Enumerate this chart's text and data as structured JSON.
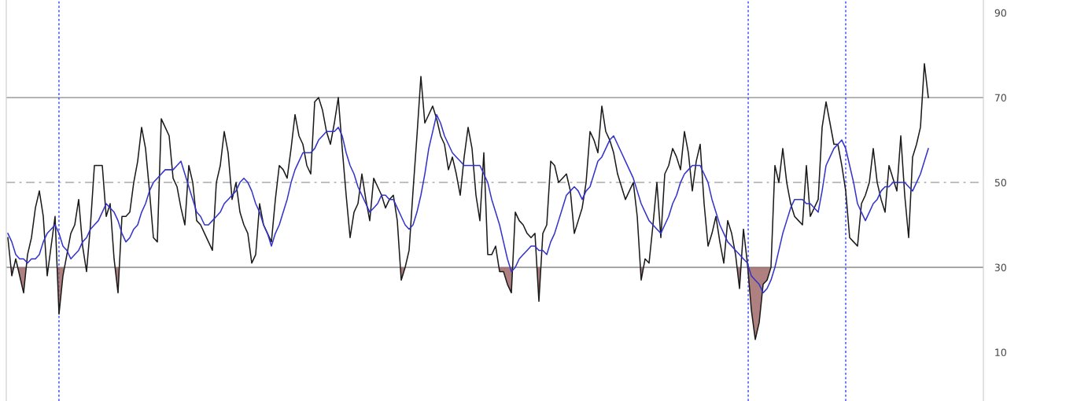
{
  "chart_data": {
    "type": "line",
    "categories": [
      null,
      null,
      null,
      null,
      null,
      null,
      null,
      null,
      null,
      null,
      null,
      null,
      null,
      null,
      null,
      null,
      null,
      null,
      null,
      null,
      null,
      null,
      null,
      null,
      null,
      null,
      null,
      null,
      null,
      null,
      null,
      null,
      null,
      null,
      null,
      null,
      null,
      null,
      null,
      null,
      null,
      null,
      null,
      null,
      null,
      null,
      null,
      null,
      null,
      null,
      null,
      null,
      null,
      null,
      null,
      null,
      null,
      null,
      null,
      null,
      null,
      null,
      null,
      null,
      null,
      null,
      null,
      null,
      null,
      null,
      null,
      null,
      null,
      null,
      null,
      null,
      null,
      null,
      null,
      null,
      null,
      null,
      null,
      null,
      null,
      null,
      null,
      null,
      null,
      null,
      null,
      null,
      null,
      null,
      null,
      null,
      null,
      null,
      null,
      null,
      null,
      null,
      null,
      null,
      null,
      null,
      null,
      null,
      null,
      null,
      null,
      null,
      null,
      null,
      null,
      null,
      null,
      null,
      null,
      null,
      null,
      null,
      null,
      null,
      null,
      null,
      null,
      null,
      null,
      null,
      null,
      null,
      null,
      null,
      null,
      null,
      null,
      null,
      null,
      null,
      null,
      null,
      null,
      null,
      null,
      null,
      null,
      null,
      null,
      null,
      null,
      null,
      null,
      null,
      null,
      null,
      null,
      null,
      null,
      null,
      null,
      null,
      null,
      null,
      null,
      null,
      null,
      null,
      null,
      null,
      null,
      null,
      null,
      null,
      null,
      null,
      null,
      null,
      null,
      null,
      null,
      null,
      null,
      null,
      null,
      null,
      null,
      null,
      null,
      null,
      null,
      null,
      null,
      null,
      null,
      null,
      null,
      null,
      null,
      null,
      null,
      null,
      null,
      null,
      null,
      null,
      null,
      null,
      null,
      null,
      null,
      null,
      null,
      null,
      null,
      null,
      null,
      null,
      null,
      null,
      null,
      null,
      null,
      null,
      null,
      null,
      null,
      null,
      null,
      null,
      null,
      null,
      null,
      null,
      null
    ],
    "series": [
      {
        "color": "#1a1a1a",
        "values": [
          37,
          28,
          32,
          28,
          24,
          33,
          37,
          44,
          48,
          42,
          28,
          35,
          42,
          19,
          28,
          33,
          38,
          40,
          46,
          35,
          29,
          40,
          54,
          54,
          54,
          42,
          45,
          32,
          24,
          42,
          42,
          43,
          50,
          55,
          63,
          58,
          48,
          37,
          36,
          65,
          63,
          61,
          51,
          49,
          44,
          40,
          54,
          50,
          41,
          40,
          38,
          36,
          34,
          50,
          54,
          62,
          57,
          46,
          50,
          43,
          40,
          38,
          31,
          33,
          45,
          40,
          38,
          36,
          46,
          54,
          53,
          51,
          58,
          66,
          61,
          59,
          54,
          52,
          69,
          70,
          67,
          62,
          59,
          64,
          70,
          58,
          47,
          37,
          43,
          45,
          52,
          46,
          41,
          51,
          49,
          47,
          44,
          46,
          47,
          41,
          27,
          30,
          34,
          48,
          61,
          75,
          64,
          66,
          68,
          65,
          61,
          59,
          53,
          56,
          52,
          47,
          56,
          63,
          58,
          47,
          41,
          57,
          33,
          33,
          35,
          29,
          29,
          26,
          24,
          43,
          41,
          40,
          38,
          37,
          38,
          22,
          38,
          40,
          55,
          54,
          50,
          51,
          52,
          48,
          38,
          41,
          44,
          50,
          62,
          60,
          57,
          68,
          62,
          60,
          57,
          52,
          49,
          46,
          48,
          50,
          42,
          27,
          32,
          31,
          40,
          50,
          37,
          52,
          54,
          58,
          56,
          53,
          62,
          57,
          48,
          55,
          59,
          45,
          35,
          38,
          42,
          36,
          31,
          41,
          38,
          33,
          25,
          39,
          31,
          20,
          13,
          17,
          26,
          27,
          30,
          54,
          50,
          58,
          50,
          45,
          42,
          41,
          40,
          54,
          42,
          44,
          46,
          63,
          69,
          64,
          59,
          59,
          54,
          48,
          37,
          36,
          35,
          45,
          47,
          50,
          58,
          50,
          46,
          43,
          54,
          51,
          48,
          61,
          47,
          37,
          56,
          59,
          63,
          78,
          70
        ]
      },
      {
        "color": "#3333cc",
        "values": [
          38,
          36,
          33,
          32,
          32,
          31,
          32,
          32,
          33,
          36,
          38,
          39,
          40,
          38,
          35,
          34,
          32,
          33,
          34,
          36,
          37,
          39,
          40,
          41,
          43,
          45,
          44,
          43,
          41,
          38,
          36,
          37,
          39,
          40,
          43,
          45,
          48,
          50,
          51,
          52,
          53,
          53,
          53,
          54,
          55,
          52,
          49,
          46,
          43,
          42,
          40,
          40,
          41,
          42,
          43,
          45,
          46,
          47,
          48,
          50,
          51,
          50,
          48,
          45,
          43,
          40,
          38,
          35,
          38,
          40,
          43,
          46,
          50,
          53,
          55,
          57,
          57,
          57,
          58,
          60,
          61,
          62,
          62,
          62,
          63,
          61,
          57,
          54,
          52,
          49,
          47,
          45,
          43,
          44,
          45,
          47,
          47,
          46,
          46,
          44,
          42,
          40,
          39,
          40,
          43,
          47,
          52,
          58,
          62,
          66,
          64,
          61,
          59,
          57,
          56,
          55,
          54,
          54,
          54,
          54,
          54,
          52,
          50,
          46,
          43,
          40,
          36,
          32,
          29,
          30,
          32,
          33,
          34,
          35,
          35,
          34,
          34,
          33,
          36,
          38,
          41,
          44,
          47,
          48,
          49,
          48,
          46,
          48,
          49,
          52,
          55,
          56,
          58,
          60,
          61,
          59,
          57,
          55,
          53,
          51,
          48,
          45,
          43,
          41,
          40,
          39,
          38,
          40,
          42,
          45,
          47,
          50,
          52,
          53,
          54,
          54,
          54,
          52,
          50,
          46,
          43,
          40,
          38,
          36,
          35,
          34,
          33,
          32,
          31,
          28,
          27,
          26,
          24,
          25,
          27,
          30,
          34,
          38,
          41,
          44,
          46,
          46,
          46,
          45,
          45,
          44,
          43,
          48,
          54,
          56,
          58,
          59,
          60,
          58,
          54,
          50,
          45,
          43,
          41,
          43,
          45,
          46,
          48,
          49,
          49,
          50,
          50,
          50,
          50,
          49,
          48,
          50,
          52,
          55,
          58
        ]
      }
    ],
    "ylim": [
      -1.5,
      93
    ],
    "yticks": [
      10,
      30,
      50,
      70,
      90
    ],
    "tick_labels": "y",
    "grid": false,
    "marker": "none",
    "line_style": "solid",
    "ref_lines": [
      {
        "axis": "y",
        "value": 70,
        "color": "#888888",
        "line_style": "solid"
      },
      {
        "axis": "y",
        "value": 30,
        "color": "#888888",
        "line_style": "solid"
      },
      {
        "axis": "y",
        "value": 50,
        "color": "#aaaaaa",
        "line_style": "dashed"
      }
    ]
  }
}
